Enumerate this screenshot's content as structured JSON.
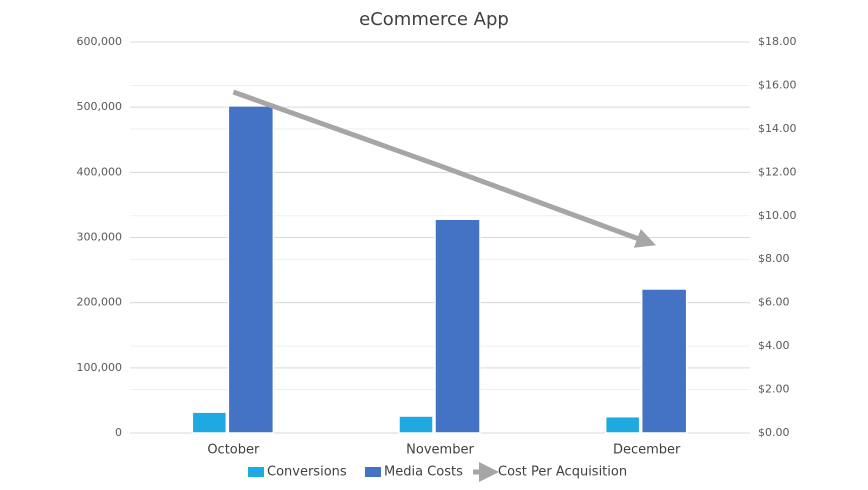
{
  "chart_data": {
    "type": "bar",
    "title": "eCommerce App",
    "categories": [
      "October",
      "November",
      "December"
    ],
    "series": [
      {
        "name": "Conversions",
        "color": "#1fa9e1",
        "values": [
          32000,
          26000,
          25000
        ]
      },
      {
        "name": "Media Costs",
        "color": "#4472c4",
        "values": [
          502000,
          328000,
          221000
        ]
      },
      {
        "name": "Cost Per Acquisition",
        "color": "#a6a6a6",
        "type": "line",
        "axis": "y2",
        "values": [
          15.7,
          12.3,
          8.8
        ]
      }
    ],
    "ylim": [
      0,
      600000
    ],
    "yticks": [
      0,
      {
        "value": 100000,
        "label": "100,000"
      },
      {
        "value": 200000,
        "label": "200,000"
      },
      {
        "value": 300000,
        "label": "300,000"
      },
      {
        "value": 400000,
        "label": "400,000"
      },
      {
        "value": 500000,
        "label": "500,000"
      },
      {
        "value": 600000,
        "label": "600,000"
      }
    ],
    "y2lim": [
      0,
      18
    ],
    "y2ticks": [
      {
        "value": 0,
        "label": "$0.00"
      },
      {
        "value": 2,
        "label": "$2.00"
      },
      {
        "value": 4,
        "label": "$4.00"
      },
      {
        "value": 6,
        "label": "$6.00"
      },
      {
        "value": 8,
        "label": "$8.00"
      },
      {
        "value": 10,
        "label": "$10.00"
      },
      {
        "value": 12,
        "label": "$12.00"
      },
      {
        "value": 14,
        "label": "$14.00"
      },
      {
        "value": 16,
        "label": "$16.00"
      },
      {
        "value": 18,
        "label": "$18.00"
      }
    ],
    "grid": true,
    "legend": "bottom"
  }
}
